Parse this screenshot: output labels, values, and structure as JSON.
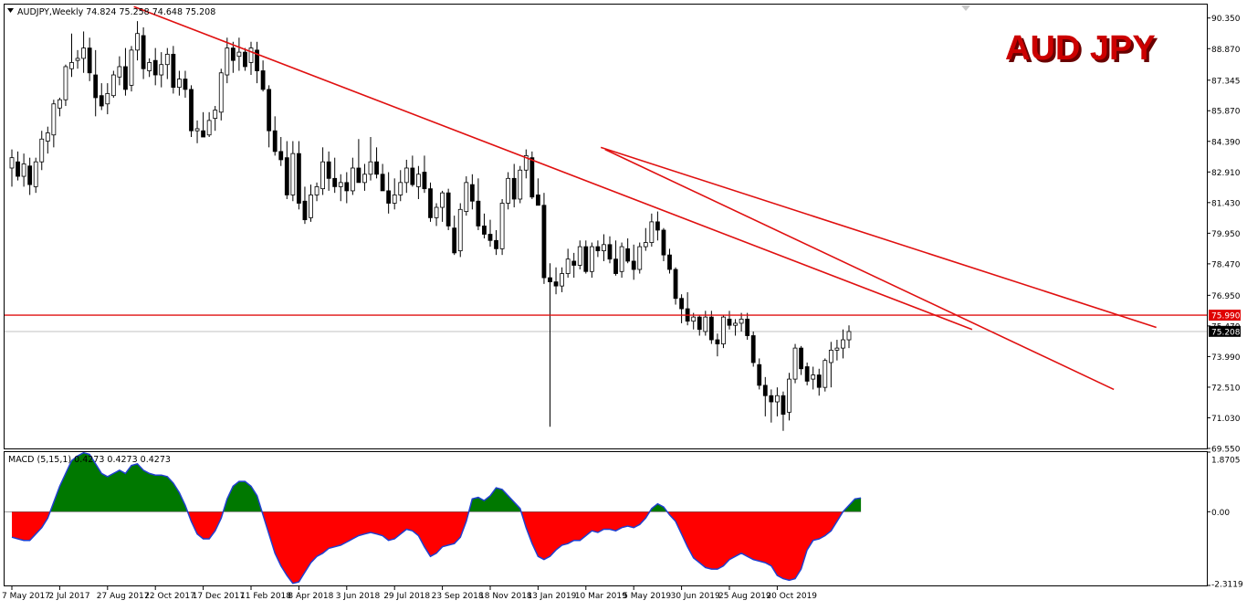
{
  "header": {
    "symbol_line": "AUDJPY,Weekly  74.824 75.258 74.648 75.208",
    "watermark": "AUD JPY"
  },
  "main_panel": {
    "ylim": [
      69.55,
      91.0
    ],
    "y_ticks": [
      "90.350",
      "88.870",
      "87.345",
      "85.870",
      "84.390",
      "82.910",
      "81.430",
      "79.950",
      "78.470",
      "76.950",
      "75.470",
      "73.990",
      "72.510",
      "71.030",
      "69.550"
    ],
    "price_labels": {
      "resistance": "75.990",
      "current": "75.208"
    },
    "colors": {
      "trendline": "#e01010",
      "current_line": "#c0c0c0",
      "badge_red": "#e00000",
      "badge_dark": "#000000"
    }
  },
  "macd_panel": {
    "label": "MACD (5,15,1) 0.4273 0.4273 0.4273",
    "ylim": [
      -2.3119,
      1.8705
    ],
    "y_ticks": [
      "1.8705",
      "0.00",
      "-2.3119"
    ],
    "colors": {
      "positive": "#007800",
      "negative": "#ff0000",
      "line": "#1f3fd0"
    }
  },
  "x_axis": {
    "labels": [
      "7 May 2017",
      "2 Jul 2017",
      "27 Aug 2017",
      "22 Oct 2017",
      "17 Dec 2017",
      "11 Feb 2018",
      "8 Apr 2018",
      "3 Jun 2018",
      "29 Jul 2018",
      "23 Sep 2018",
      "18 Nov 2018",
      "13 Jan 2019",
      "10 Mar 2019",
      "5 May 2019",
      "30 Jun 2019",
      "25 Aug 2019",
      "20 Oct 2019"
    ]
  },
  "chart_data": [
    {
      "type": "candlestick",
      "title": "AUDJPY,Weekly",
      "x_start": "7 May 2017",
      "x_end": "27 Oct 2019",
      "ylim": [
        69.55,
        91.0
      ],
      "ohlc": [
        [
          83.1,
          84.0,
          82.2,
          83.6
        ],
        [
          83.4,
          83.9,
          82.5,
          82.7
        ],
        [
          82.7,
          83.8,
          82.2,
          83.3
        ],
        [
          83.2,
          83.6,
          81.8,
          82.3
        ],
        [
          82.2,
          83.6,
          81.9,
          83.4
        ],
        [
          83.4,
          84.9,
          83.0,
          84.5
        ],
        [
          84.4,
          85.1,
          83.8,
          84.8
        ],
        [
          84.7,
          86.4,
          84.1,
          86.2
        ],
        [
          86.0,
          86.5,
          85.6,
          86.4
        ],
        [
          86.4,
          88.1,
          86.1,
          88.0
        ],
        [
          87.9,
          89.6,
          87.5,
          88.2
        ],
        [
          88.3,
          88.8,
          87.9,
          88.4
        ],
        [
          88.4,
          89.7,
          87.7,
          88.9
        ],
        [
          88.9,
          89.4,
          87.3,
          87.7
        ],
        [
          87.6,
          88.8,
          85.6,
          86.5
        ],
        [
          86.6,
          87.2,
          85.9,
          86.1
        ],
        [
          86.2,
          87.2,
          85.7,
          86.7
        ],
        [
          86.6,
          87.8,
          86.5,
          87.6
        ],
        [
          87.5,
          88.5,
          87.1,
          88.0
        ],
        [
          88.0,
          88.9,
          86.6,
          86.9
        ],
        [
          87.1,
          89.0,
          86.8,
          88.8
        ],
        [
          88.8,
          90.2,
          88.3,
          89.6
        ],
        [
          89.5,
          89.9,
          87.4,
          87.9
        ],
        [
          87.8,
          88.4,
          87.5,
          88.2
        ],
        [
          88.3,
          88.9,
          87.1,
          87.6
        ],
        [
          87.6,
          88.7,
          87.0,
          88.1
        ],
        [
          88.1,
          88.9,
          87.4,
          88.6
        ],
        [
          88.6,
          89.0,
          86.7,
          87.0
        ],
        [
          87.0,
          87.8,
          86.6,
          87.4
        ],
        [
          87.4,
          87.8,
          86.5,
          86.9
        ],
        [
          86.9,
          87.1,
          84.6,
          84.9
        ],
        [
          84.9,
          85.4,
          84.3,
          85.0
        ],
        [
          84.9,
          85.8,
          84.6,
          84.6
        ],
        [
          84.7,
          85.8,
          84.6,
          85.4
        ],
        [
          85.5,
          86.1,
          84.9,
          85.9
        ],
        [
          85.8,
          87.9,
          85.4,
          87.7
        ],
        [
          87.6,
          89.4,
          87.2,
          88.9
        ],
        [
          88.9,
          89.2,
          87.7,
          88.3
        ],
        [
          88.5,
          89.4,
          87.8,
          88.7
        ],
        [
          88.7,
          88.9,
          87.8,
          88.0
        ],
        [
          88.2,
          89.2,
          87.6,
          88.9
        ],
        [
          88.8,
          89.2,
          87.2,
          87.8
        ],
        [
          87.8,
          88.3,
          86.8,
          86.9
        ],
        [
          86.9,
          87.1,
          84.1,
          84.9
        ],
        [
          84.9,
          85.6,
          83.7,
          83.9
        ],
        [
          83.9,
          84.6,
          83.2,
          83.5
        ],
        [
          83.6,
          84.4,
          81.6,
          81.8
        ],
        [
          81.8,
          84.4,
          81.5,
          83.8
        ],
        [
          83.8,
          84.4,
          81.1,
          81.4
        ],
        [
          81.5,
          82.2,
          80.4,
          80.6
        ],
        [
          80.7,
          82.3,
          80.5,
          81.8
        ],
        [
          81.8,
          82.4,
          81.5,
          82.2
        ],
        [
          82.1,
          84.1,
          81.8,
          83.4
        ],
        [
          83.4,
          83.9,
          82.0,
          82.6
        ],
        [
          82.6,
          83.6,
          81.9,
          82.2
        ],
        [
          82.2,
          82.8,
          81.5,
          82.4
        ],
        [
          82.4,
          82.9,
          81.4,
          82.0
        ],
        [
          82.0,
          83.6,
          81.8,
          83.1
        ],
        [
          83.1,
          84.5,
          82.5,
          82.4
        ],
        [
          82.4,
          83.3,
          82.0,
          82.8
        ],
        [
          82.8,
          84.6,
          82.5,
          83.4
        ],
        [
          83.4,
          84.1,
          82.6,
          82.8
        ],
        [
          82.8,
          83.3,
          82.0,
          82.0
        ],
        [
          82.0,
          82.9,
          80.9,
          81.4
        ],
        [
          81.4,
          82.6,
          81.1,
          81.8
        ],
        [
          81.8,
          83.0,
          81.5,
          82.4
        ],
        [
          82.4,
          83.5,
          81.9,
          83.1
        ],
        [
          83.1,
          83.7,
          82.2,
          82.3
        ],
        [
          82.2,
          83.2,
          81.6,
          82.8
        ],
        [
          82.9,
          83.7,
          81.9,
          82.1
        ],
        [
          82.1,
          82.4,
          80.5,
          80.7
        ],
        [
          80.7,
          81.4,
          80.3,
          81.2
        ],
        [
          81.2,
          82.0,
          80.5,
          81.9
        ],
        [
          81.9,
          82.1,
          80.1,
          80.3
        ],
        [
          80.2,
          80.8,
          78.9,
          79.0
        ],
        [
          79.1,
          81.4,
          78.8,
          81.1
        ],
        [
          81.0,
          82.7,
          80.8,
          82.4
        ],
        [
          82.3,
          82.8,
          81.1,
          81.5
        ],
        [
          81.5,
          82.6,
          80.1,
          80.3
        ],
        [
          80.3,
          80.9,
          79.7,
          79.9
        ],
        [
          79.9,
          80.6,
          79.3,
          79.6
        ],
        [
          79.6,
          80.1,
          78.9,
          79.2
        ],
        [
          79.2,
          81.6,
          78.9,
          81.4
        ],
        [
          81.4,
          82.9,
          81.1,
          82.6
        ],
        [
          82.6,
          83.3,
          81.2,
          81.6
        ],
        [
          81.6,
          83.2,
          81.4,
          83.0
        ],
        [
          83.0,
          84.0,
          82.6,
          83.7
        ],
        [
          83.6,
          83.9,
          81.6,
          81.7
        ],
        [
          81.8,
          82.6,
          81.3,
          81.3
        ],
        [
          81.3,
          81.9,
          77.5,
          77.8
        ],
        [
          77.8,
          78.5,
          70.6,
          77.6
        ],
        [
          77.6,
          78.3,
          77.0,
          77.4
        ],
        [
          77.4,
          78.3,
          77.1,
          78.0
        ],
        [
          78.0,
          79.2,
          77.8,
          78.7
        ],
        [
          78.6,
          79.0,
          77.8,
          78.4
        ],
        [
          78.4,
          79.6,
          78.2,
          79.3
        ],
        [
          79.3,
          79.6,
          78.0,
          78.1
        ],
        [
          78.1,
          79.5,
          77.8,
          79.3
        ],
        [
          79.3,
          79.6,
          78.8,
          79.1
        ],
        [
          79.1,
          79.9,
          78.6,
          79.4
        ],
        [
          79.4,
          79.8,
          78.5,
          78.7
        ],
        [
          78.7,
          79.6,
          77.9,
          78.0
        ],
        [
          78.1,
          79.5,
          77.8,
          79.3
        ],
        [
          79.2,
          79.7,
          78.5,
          78.6
        ],
        [
          78.6,
          79.4,
          77.7,
          78.2
        ],
        [
          78.2,
          79.5,
          78.0,
          79.3
        ],
        [
          79.3,
          80.2,
          79.1,
          79.5
        ],
        [
          79.5,
          80.9,
          79.3,
          80.5
        ],
        [
          80.5,
          81.0,
          79.6,
          80.1
        ],
        [
          80.1,
          80.2,
          78.6,
          78.9
        ],
        [
          78.9,
          79.2,
          78.0,
          78.2
        ],
        [
          78.2,
          78.3,
          76.5,
          76.8
        ],
        [
          76.8,
          77.0,
          75.6,
          76.3
        ],
        [
          76.3,
          77.1,
          75.5,
          75.7
        ],
        [
          75.7,
          76.1,
          75.3,
          75.9
        ],
        [
          75.9,
          76.0,
          75.0,
          75.3
        ],
        [
          75.2,
          76.2,
          75.0,
          75.9
        ],
        [
          75.9,
          76.2,
          74.6,
          74.8
        ],
        [
          74.8,
          75.1,
          74.0,
          74.6
        ],
        [
          74.6,
          76.0,
          74.4,
          75.9
        ],
        [
          75.8,
          76.2,
          75.3,
          75.5
        ],
        [
          75.5,
          75.8,
          75.0,
          75.6
        ],
        [
          75.6,
          76.1,
          75.2,
          75.8
        ],
        [
          75.8,
          76.1,
          74.8,
          75.0
        ],
        [
          75.0,
          75.2,
          73.5,
          73.7
        ],
        [
          73.6,
          73.9,
          72.4,
          72.6
        ],
        [
          72.6,
          73.0,
          71.1,
          72.1
        ],
        [
          72.1,
          72.4,
          70.8,
          71.8
        ],
        [
          71.8,
          72.5,
          71.1,
          72.1
        ],
        [
          72.1,
          72.3,
          70.4,
          71.2
        ],
        [
          71.3,
          73.2,
          70.9,
          72.9
        ],
        [
          72.9,
          74.6,
          72.7,
          74.4
        ],
        [
          74.4,
          74.5,
          73.1,
          73.4
        ],
        [
          73.5,
          73.7,
          72.6,
          72.8
        ],
        [
          72.9,
          73.5,
          72.4,
          73.1
        ],
        [
          73.1,
          73.4,
          72.1,
          72.5
        ],
        [
          72.5,
          73.9,
          72.3,
          73.8
        ],
        [
          73.7,
          74.7,
          72.5,
          74.3
        ],
        [
          74.3,
          74.8,
          73.8,
          74.4
        ],
        [
          74.4,
          75.3,
          73.9,
          74.8
        ],
        [
          74.8,
          75.5,
          74.4,
          75.2
        ]
      ]
    },
    {
      "type": "histogram",
      "title": "MACD (5,15,1)",
      "ylim": [
        -2.3119,
        1.8705
      ],
      "values": [
        -0.8,
        -0.85,
        -0.9,
        -0.9,
        -0.7,
        -0.5,
        -0.2,
        0.3,
        0.8,
        1.2,
        1.6,
        1.75,
        1.85,
        1.8,
        1.5,
        1.2,
        1.1,
        1.2,
        1.3,
        1.2,
        1.45,
        1.5,
        1.3,
        1.2,
        1.15,
        1.15,
        1.1,
        0.9,
        0.6,
        0.2,
        -0.3,
        -0.7,
        -0.85,
        -0.85,
        -0.6,
        -0.2,
        0.4,
        0.8,
        0.95,
        0.95,
        0.8,
        0.5,
        -0.1,
        -0.7,
        -1.3,
        -1.7,
        -2.0,
        -2.25,
        -2.2,
        -1.9,
        -1.6,
        -1.4,
        -1.3,
        -1.15,
        -1.1,
        -1.05,
        -0.95,
        -0.85,
        -0.75,
        -0.7,
        -0.65,
        -0.7,
        -0.75,
        -0.9,
        -0.85,
        -0.7,
        -0.55,
        -0.6,
        -0.75,
        -1.1,
        -1.4,
        -1.3,
        -1.1,
        -1.05,
        -1.0,
        -0.8,
        -0.3,
        0.4,
        0.45,
        0.35,
        0.5,
        0.75,
        0.7,
        0.5,
        0.3,
        0.1,
        -0.5,
        -1.0,
        -1.4,
        -1.5,
        -1.4,
        -1.2,
        -1.05,
        -1.0,
        -0.9,
        -0.9,
        -0.75,
        -0.6,
        -0.65,
        -0.55,
        -0.55,
        -0.6,
        -0.5,
        -0.45,
        -0.5,
        -0.4,
        -0.2,
        0.1,
        0.25,
        0.15,
        -0.1,
        -0.3,
        -0.7,
        -1.1,
        -1.45,
        -1.6,
        -1.75,
        -1.8,
        -1.8,
        -1.7,
        -1.5,
        -1.4,
        -1.3,
        -1.4,
        -1.5,
        -1.55,
        -1.6,
        -1.7,
        -2.0,
        -2.1,
        -2.15,
        -2.1,
        -1.8,
        -1.2,
        -0.9,
        -0.85,
        -0.75,
        -0.6,
        -0.3,
        0.0,
        0.2,
        0.4,
        0.43
      ]
    }
  ]
}
